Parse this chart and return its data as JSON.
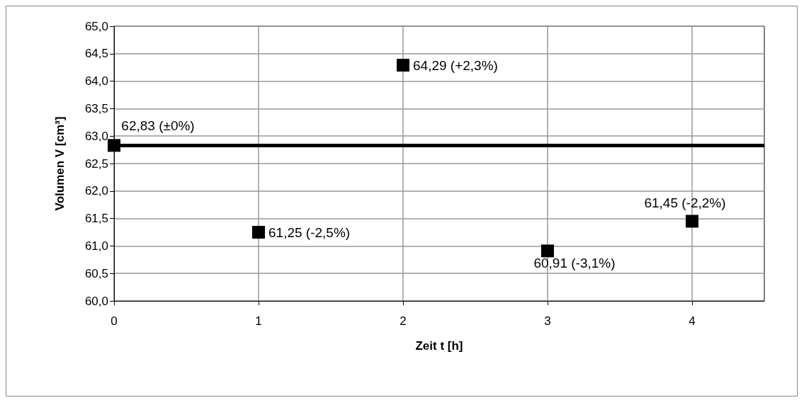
{
  "chart_data": {
    "type": "scatter",
    "xlabel": "Zeit t [h]",
    "ylabel": "Volumen V [cm³]",
    "x": [
      0,
      1,
      2,
      3,
      4
    ],
    "series": [
      {
        "color": "#000000",
        "values": [
          62.83,
          61.25,
          64.29,
          60.91,
          61.45
        ],
        "value_labels": [
          "62,83 (±0%)",
          "61,25 (-2,5%)",
          "64,29 (+2,3%)",
          "60,91 (-3,1%)",
          "61,45 (-2,2%)"
        ]
      }
    ],
    "xlim": [
      0,
      4.5
    ],
    "xticks": [
      0,
      1,
      2,
      3,
      4
    ],
    "ylim": [
      60,
      65
    ],
    "yticks": [
      {
        "value": 60,
        "label": "60,0"
      },
      {
        "value": 60.5,
        "label": "60,5"
      },
      {
        "value": 61,
        "label": "61,0"
      },
      {
        "value": 61.5,
        "label": "61,5"
      },
      {
        "value": 62,
        "label": "62,0"
      },
      {
        "value": 62.5,
        "label": "62,5"
      },
      {
        "value": 63,
        "label": "63,0"
      },
      {
        "value": 63.5,
        "label": "63,5"
      },
      {
        "value": 64,
        "label": "64,0"
      },
      {
        "value": 64.5,
        "label": "64,5"
      },
      {
        "value": 65,
        "label": "65,0"
      }
    ],
    "ref_lines": [
      {
        "axis": "y",
        "value": 62.83,
        "color": "#000000"
      }
    ],
    "grid": true,
    "marker": "square"
  }
}
